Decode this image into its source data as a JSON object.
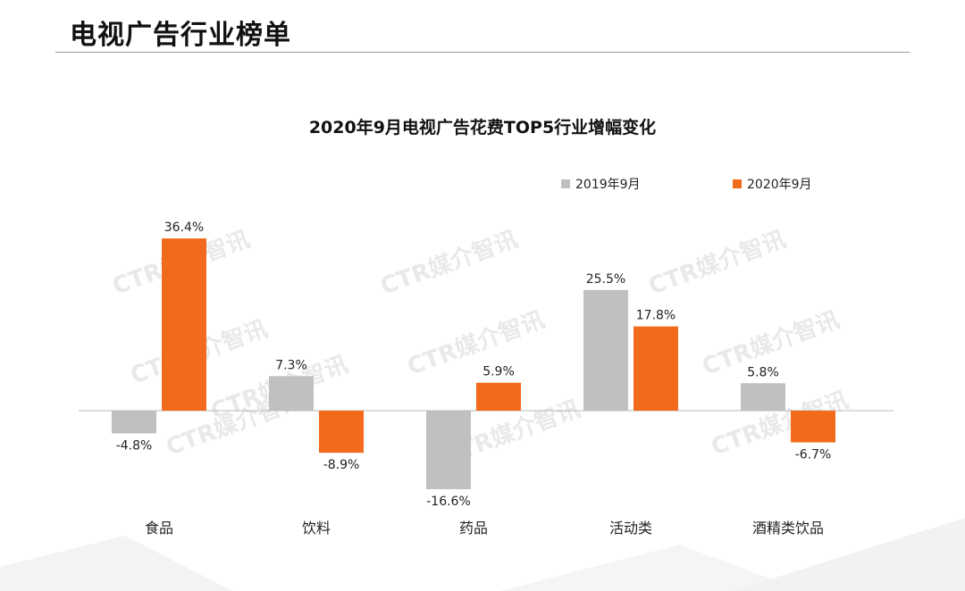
{
  "header": {
    "title": "电视广告行业榜单"
  },
  "watermark": "CTR媒介智讯",
  "chart_data": {
    "type": "bar",
    "title": "2020年9月电视广告花费TOP5行业增幅变化",
    "categories": [
      "食品",
      "饮料",
      "药品",
      "活动类",
      "酒精类饮品"
    ],
    "series": [
      {
        "name": "2019年9月",
        "color": "#c0c0c0",
        "values": [
          -4.8,
          7.3,
          -16.6,
          25.5,
          5.8
        ],
        "labels": [
          "-4.8%",
          "7.3%",
          "-16.6%",
          "25.5%",
          "5.8%"
        ]
      },
      {
        "name": "2020年9月",
        "color": "#f26a1b",
        "values": [
          36.4,
          -8.9,
          5.9,
          17.8,
          -6.7
        ],
        "labels": [
          "36.4%",
          "-8.9%",
          "5.9%",
          "17.8%",
          "-6.7%"
        ]
      }
    ],
    "legend": "top-right",
    "grid": false
  }
}
